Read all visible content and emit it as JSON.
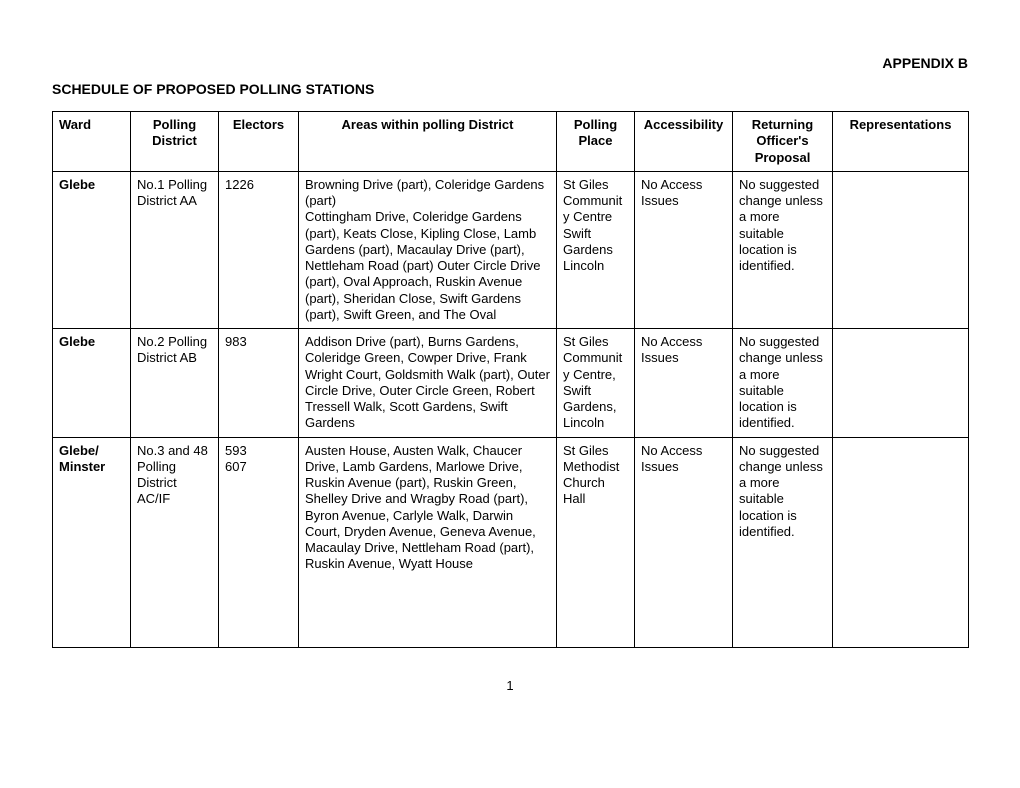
{
  "appendix": "APPENDIX B",
  "title": "SCHEDULE OF PROPOSED POLLING STATIONS",
  "headers": {
    "ward": "Ward",
    "pollingDistrict": "Polling District",
    "electors": "Electors",
    "areas": "Areas within polling District",
    "place": "Polling Place",
    "accessibility": "Accessibility",
    "proposal": "Returning Officer's Proposal",
    "representations": "Representations"
  },
  "rows": [
    {
      "ward": "Glebe",
      "pollingDistrict": "No.1 Polling District AA",
      "electors": "1226",
      "areas1": "Browning Drive (part), Coleridge Gardens (part)",
      "areas2": "Cottingham Drive, Coleridge Gardens (part), Keats Close, Kipling Close, Lamb Gardens (part), Macaulay Drive (part),",
      "areas3": "Nettleham Road (part) Outer Circle Drive (part), Oval Approach, Ruskin Avenue (part), Sheridan Close, Swift Gardens (part), Swift Green, and The Oval",
      "place": "St Giles Community Centre Swift Gardens Lincoln",
      "accessibility": "No Access Issues",
      "proposal": "No suggested change unless a more suitable location is identified.",
      "representations": ""
    },
    {
      "ward": "Glebe",
      "pollingDistrict": "No.2 Polling District AB",
      "electors": "983",
      "areas1": "Addison Drive (part), Burns Gardens, Coleridge Green, Cowper Drive, Frank Wright Court, Goldsmith Walk (part), Outer Circle Drive, Outer Circle Green, Robert Tressell Walk, Scott Gardens, Swift Gardens",
      "areas2": "",
      "areas3": "",
      "place": "St Giles Community Centre, Swift Gardens, Lincoln",
      "accessibility": "No Access Issues",
      "proposal": "No suggested change unless a more suitable location is identified.",
      "representations": ""
    },
    {
      "ward": "Glebe/ Minster",
      "pollingDistrict": "No.3 and 48 Polling District AC/IF",
      "electors": "593\n607",
      "areas1": "Austen House, Austen Walk, Chaucer Drive, Lamb Gardens, Marlowe Drive, Ruskin Avenue (part), Ruskin Green, Shelley Drive and Wragby Road (part), Byron Avenue, Carlyle Walk, Darwin Court, Dryden Avenue, Geneva Avenue, Macaulay Drive, Nettleham Road (part), Ruskin Avenue, Wyatt House",
      "areas2": "",
      "areas3": "",
      "place": "St Giles Methodist Church Hall",
      "accessibility": "No Access Issues",
      "proposal": "No suggested change unless a more suitable location is identified.",
      "representations": ""
    }
  ],
  "pageNumber": "1",
  "style": {
    "fontFamily": "Arial",
    "baseFontSize": 13,
    "borderColor": "#000000",
    "background": "#ffffff",
    "textColor": "#000000"
  }
}
